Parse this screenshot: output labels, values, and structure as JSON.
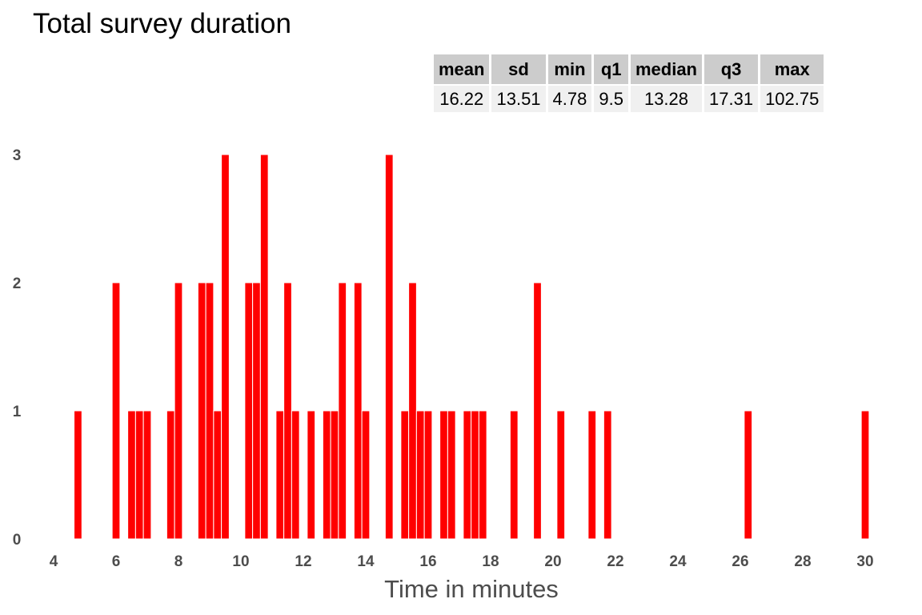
{
  "title": "Total survey duration",
  "stats_table": {
    "headers": [
      "mean",
      "sd",
      "min",
      "q1",
      "median",
      "q3",
      "max"
    ],
    "values": [
      "16.22",
      "13.51",
      "4.78",
      "9.5",
      "13.28",
      "17.31",
      "102.75"
    ]
  },
  "chart_data": {
    "type": "bar",
    "title": "Total survey duration",
    "xlabel": "Time in minutes",
    "ylabel": "",
    "xlim": [
      4,
      31
    ],
    "ylim": [
      0,
      3
    ],
    "x_ticks": [
      4,
      6,
      8,
      10,
      12,
      14,
      16,
      18,
      20,
      22,
      24,
      26,
      28,
      30
    ],
    "y_ticks": [
      0,
      1,
      2,
      3
    ],
    "bar_width": 0.25,
    "bar_color": "#ff0000",
    "grid": false,
    "bars": [
      {
        "x": 4.78,
        "count": 1
      },
      {
        "x": 6.0,
        "count": 2
      },
      {
        "x": 6.5,
        "count": 1
      },
      {
        "x": 6.75,
        "count": 1
      },
      {
        "x": 7.0,
        "count": 1
      },
      {
        "x": 7.75,
        "count": 1
      },
      {
        "x": 8.0,
        "count": 2
      },
      {
        "x": 8.75,
        "count": 2
      },
      {
        "x": 9.0,
        "count": 2
      },
      {
        "x": 9.25,
        "count": 1
      },
      {
        "x": 9.5,
        "count": 3
      },
      {
        "x": 10.25,
        "count": 2
      },
      {
        "x": 10.5,
        "count": 2
      },
      {
        "x": 10.75,
        "count": 3
      },
      {
        "x": 11.25,
        "count": 1
      },
      {
        "x": 11.5,
        "count": 2
      },
      {
        "x": 11.75,
        "count": 1
      },
      {
        "x": 12.25,
        "count": 1
      },
      {
        "x": 12.75,
        "count": 1
      },
      {
        "x": 13.0,
        "count": 1
      },
      {
        "x": 13.25,
        "count": 2
      },
      {
        "x": 13.75,
        "count": 2
      },
      {
        "x": 14.0,
        "count": 1
      },
      {
        "x": 14.75,
        "count": 3
      },
      {
        "x": 15.25,
        "count": 1
      },
      {
        "x": 15.5,
        "count": 2
      },
      {
        "x": 15.75,
        "count": 1
      },
      {
        "x": 16.0,
        "count": 1
      },
      {
        "x": 16.5,
        "count": 1
      },
      {
        "x": 16.75,
        "count": 1
      },
      {
        "x": 17.25,
        "count": 1
      },
      {
        "x": 17.5,
        "count": 1
      },
      {
        "x": 17.75,
        "count": 1
      },
      {
        "x": 18.75,
        "count": 1
      },
      {
        "x": 19.5,
        "count": 2
      },
      {
        "x": 20.25,
        "count": 1
      },
      {
        "x": 21.25,
        "count": 1
      },
      {
        "x": 21.75,
        "count": 1
      },
      {
        "x": 26.25,
        "count": 1
      },
      {
        "x": 30.0,
        "count": 1
      }
    ]
  }
}
